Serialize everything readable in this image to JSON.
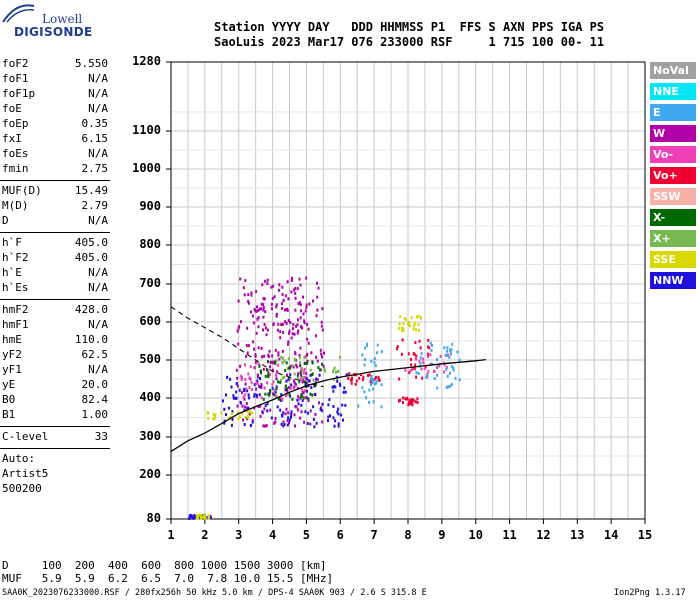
{
  "logo": {
    "line1": "Lowell",
    "line2": "DIGISONDE"
  },
  "header": {
    "line1": "Station YYYY DAY   DDD HHMMSS P1  FFS S AXN PPS IGA PS",
    "line2": "SaoLuis 2023 Mar17 076 233000 RSF     1 715 100 00- 11"
  },
  "params": {
    "group1": [
      {
        "name": "foF2",
        "value": "5.550"
      },
      {
        "name": "foF1",
        "value": "N/A"
      },
      {
        "name": "foF1p",
        "value": "N/A"
      },
      {
        "name": "foE",
        "value": "N/A"
      },
      {
        "name": "foEp",
        "value": "0.35"
      },
      {
        "name": "fxI",
        "value": "6.15"
      },
      {
        "name": "foEs",
        "value": "N/A"
      },
      {
        "name": "fmin",
        "value": "2.75"
      }
    ],
    "group2": [
      {
        "name": "MUF(D)",
        "value": "15.49"
      },
      {
        "name": "M(D)",
        "value": "2.79"
      },
      {
        "name": "D",
        "value": "N/A"
      }
    ],
    "group3": [
      {
        "name": "h`F",
        "value": "405.0"
      },
      {
        "name": "h`F2",
        "value": "405.0"
      },
      {
        "name": "h`E",
        "value": "N/A"
      },
      {
        "name": "h`Es",
        "value": "N/A"
      }
    ],
    "group4": [
      {
        "name": "hmF2",
        "value": "428.0"
      },
      {
        "name": "hmF1",
        "value": "N/A"
      },
      {
        "name": "hmE",
        "value": "110.0"
      },
      {
        "name": "yF2",
        "value": "62.5"
      },
      {
        "name": "yF1",
        "value": "N/A"
      },
      {
        "name": "yE",
        "value": "20.0"
      },
      {
        "name": "B0",
        "value": "82.4"
      },
      {
        "name": "B1",
        "value": "1.00"
      }
    ],
    "clevel": {
      "name": "C-level",
      "value": "33"
    },
    "auto": [
      "Auto:",
      "Artist5",
      "500200"
    ]
  },
  "muf_table": {
    "d_line": "D     100  200  400  600  800 1000 1500 3000 [km]",
    "muf_line": "MUF   5.9  5.9  6.2  6.5  7.0  7.8 10.0 15.5 [MHz]"
  },
  "footer": {
    "left": "SAA0K_2023076233000.RSF / 280fx256h 50 kHz 5.0 km / DPS-4 SAA0K 903 / 2.6 S 315.8 E",
    "right": "Ion2Png 1.3.17"
  },
  "legend": [
    {
      "label": "NoVal",
      "color": "#a0a0a0"
    },
    {
      "label": "NNE",
      "color": "#00e8f8"
    },
    {
      "label": "E",
      "color": "#40a8f0"
    },
    {
      "label": "W",
      "color": "#b000a8"
    },
    {
      "label": "Vo-",
      "color": "#f040b8"
    },
    {
      "label": "Vo+",
      "color": "#f00030"
    },
    {
      "label": "SSW",
      "color": "#f8b0a8"
    },
    {
      "label": "X-",
      "color": "#006800"
    },
    {
      "label": "X+",
      "color": "#78b850"
    },
    {
      "label": "SSE",
      "color": "#d8d800"
    },
    {
      "label": "NNW",
      "color": "#2010e0"
    }
  ],
  "chart_data": {
    "type": "scatter",
    "xlim": [
      1,
      15
    ],
    "ylim": [
      80,
      1280
    ],
    "x_ticks": [
      1,
      2,
      3,
      4,
      5,
      6,
      7,
      8,
      9,
      10,
      11,
      12,
      13,
      14,
      15
    ],
    "y_ticks": [
      80,
      200,
      300,
      400,
      500,
      600,
      700,
      800,
      900,
      1000,
      1100,
      1280
    ],
    "y_scale": "distorted (ionogram: 80-1280 km)",
    "grid": true,
    "series": [
      {
        "color": "#b000a8",
        "cluster": [
          [
            2.9,
            5.5,
            330,
            720
          ],
          [
            3.2,
            5.0,
            560,
            650
          ]
        ]
      },
      {
        "color": "#2010e0",
        "cluster": [
          [
            2.5,
            6.2,
            330,
            470
          ],
          [
            1.5,
            2.2,
            85,
            95
          ]
        ]
      },
      {
        "color": "#f00030",
        "cluster": [
          [
            7.6,
            8.6,
            450,
            560
          ],
          [
            7.7,
            8.3,
            385,
            405
          ],
          [
            6.2,
            7.2,
            440,
            470
          ]
        ]
      },
      {
        "color": "#f040b8",
        "cluster": [
          [
            7.8,
            9.2,
            470,
            520
          ],
          [
            3.0,
            5.0,
            400,
            500
          ]
        ]
      },
      {
        "color": "#d8d800",
        "cluster": [
          [
            2.0,
            3.5,
            350,
            370
          ],
          [
            7.7,
            8.4,
            580,
            620
          ],
          [
            1.7,
            2.1,
            85,
            95
          ]
        ]
      },
      {
        "color": "#40a8f0",
        "cluster": [
          [
            8.2,
            9.5,
            430,
            560
          ],
          [
            6.5,
            7.2,
            380,
            560
          ]
        ]
      },
      {
        "color": "#78b850",
        "cluster": [
          [
            4.0,
            6.0,
            450,
            520
          ]
        ]
      },
      {
        "color": "#006800",
        "cluster": [
          [
            3.5,
            5.5,
            400,
            500
          ]
        ]
      }
    ],
    "curves": {
      "solid": [
        [
          1.0,
          262
        ],
        [
          1.5,
          290
        ],
        [
          2.0,
          310
        ],
        [
          2.5,
          335
        ],
        [
          3.0,
          360
        ],
        [
          3.5,
          378
        ],
        [
          4.0,
          395
        ],
        [
          4.5,
          415
        ],
        [
          5.0,
          432
        ],
        [
          5.5,
          445
        ],
        [
          6.0,
          455
        ],
        [
          7.0,
          470
        ],
        [
          8.0,
          480
        ],
        [
          9.0,
          490
        ],
        [
          10.0,
          498
        ],
        [
          10.3,
          501
        ]
      ],
      "dashed": [
        [
          1.0,
          640
        ],
        [
          1.5,
          610
        ],
        [
          2.0,
          585
        ],
        [
          2.5,
          560
        ],
        [
          3.0,
          530
        ],
        [
          3.5,
          500
        ],
        [
          4.0,
          470
        ],
        [
          4.5,
          455
        ],
        [
          5.0,
          440
        ],
        [
          5.5,
          430
        ]
      ]
    }
  }
}
